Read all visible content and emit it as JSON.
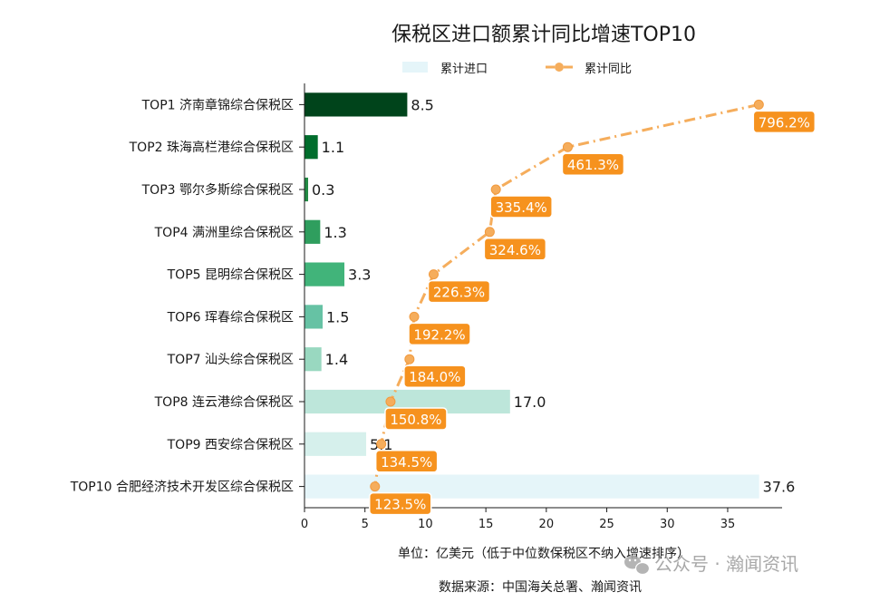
{
  "chart_data": {
    "type": "bar",
    "orientation": "horizontal",
    "title": "保税区进口额累计同比增速TOP10",
    "categories": [
      "TOP1 济南章锦综合保税区",
      "TOP2 珠海高栏港综合保税区",
      "TOP3 鄂尔多斯综合保税区",
      "TOP4 满洲里综合保税区",
      "TOP5 昆明综合保税区",
      "TOP6 珲春综合保税区",
      "TOP7 汕头综合保税区",
      "TOP8 连云港综合保税区",
      "TOP9 西安综合保税区",
      "TOP10 合肥经济技术开发区综合保税区"
    ],
    "series": [
      {
        "name": "累计进口",
        "type": "bar",
        "values": [
          8.5,
          1.1,
          0.3,
          1.3,
          3.3,
          1.5,
          1.4,
          17.0,
          5.1,
          37.6
        ],
        "labels": [
          "8.5",
          "1.1",
          "0.3",
          "1.3",
          "3.3",
          "1.5",
          "1.4",
          "17.0",
          "5.1",
          "37.6"
        ],
        "colors": [
          "#00441b",
          "#006d2c",
          "#238b45",
          "#2f9e5e",
          "#41b47a",
          "#66c2a4",
          "#99d8c0",
          "#bde6da",
          "#d6f0ec",
          "#e5f5f9"
        ]
      },
      {
        "name": "累计同比",
        "type": "line",
        "values": [
          796.2,
          461.3,
          335.4,
          324.6,
          226.3,
          192.2,
          184.0,
          150.8,
          134.5,
          123.5
        ],
        "labels": [
          "796.2%",
          "461.3%",
          "335.4%",
          "324.6%",
          "226.3%",
          "192.2%",
          "184.0%",
          "150.8%",
          "134.5%",
          "123.5%"
        ],
        "color": "#f5ad5c",
        "label_bg": "#f6921e"
      }
    ],
    "x_ticks": [
      "0",
      "5",
      "10",
      "15",
      "20",
      "25",
      "30",
      "35"
    ],
    "xlim": [
      0,
      39.5
    ],
    "x2lim": [
      0,
      837
    ],
    "legend_position": "top-center",
    "grid": false
  },
  "footer": {
    "unit": "单位：亿美元（低于中位数保税区不纳入增速排序）",
    "source": "数据来源：中国海关总署、瀚闻资讯"
  },
  "watermark": "公众号 · 瀚闻资讯",
  "watermark_icon": "wechat-icon"
}
